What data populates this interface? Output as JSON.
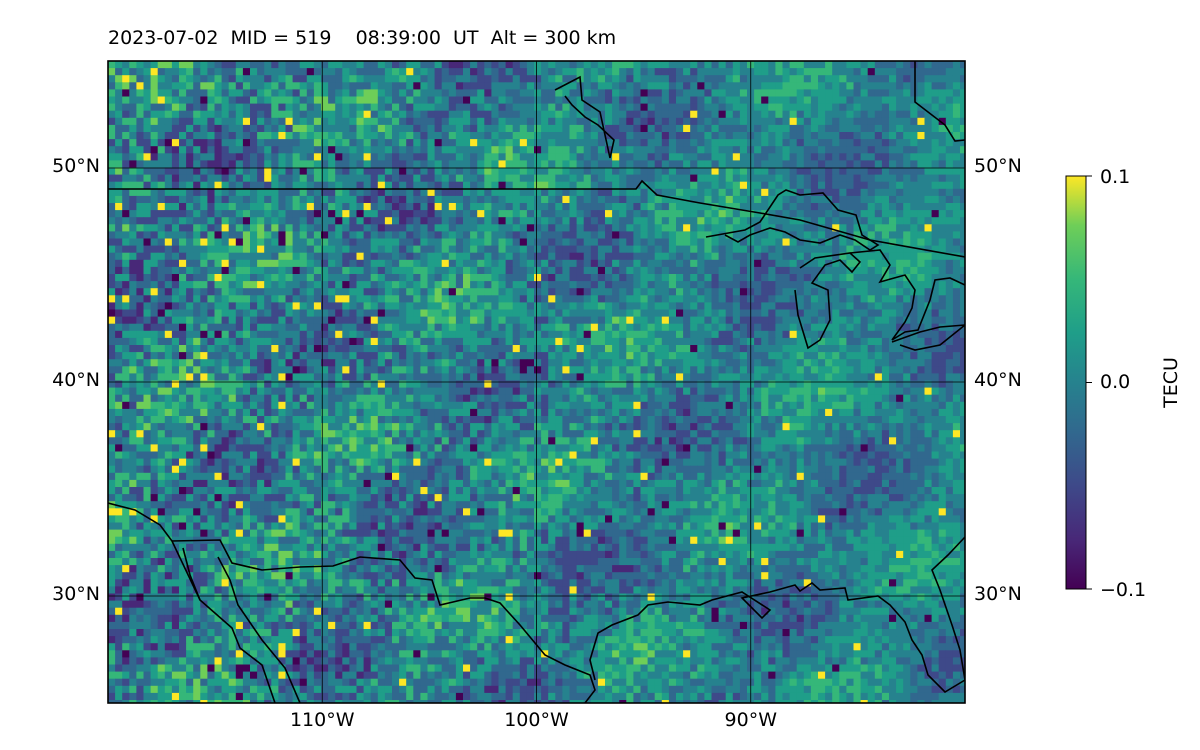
{
  "title": {
    "date": "2023-07-02",
    "mid_text": "MID = 519",
    "time_text": "08:39:00  UT",
    "alt_text": "Alt = 300 km"
  },
  "map": {
    "lon_range": [
      -120,
      -80
    ],
    "lat_range": [
      25,
      55
    ],
    "lon_ticks": [
      {
        "value": -110,
        "label": "110°W"
      },
      {
        "value": -100,
        "label": "100°W"
      },
      {
        "value": -90,
        "label": "90°W"
      }
    ],
    "lat_ticks": [
      {
        "value": 50,
        "label": "50°N"
      },
      {
        "value": 40,
        "label": "40°N"
      },
      {
        "value": 30,
        "label": "30°N"
      }
    ],
    "gridlines": true,
    "colormap": "viridis",
    "coastlines": "black"
  },
  "colorbar": {
    "label": "TECU",
    "min": -0.1,
    "max": 0.1,
    "ticks": [
      {
        "value": 0.1,
        "label": "0.1"
      },
      {
        "value": 0.0,
        "label": "0.0"
      },
      {
        "value": -0.1,
        "label": "−0.1"
      }
    ]
  }
}
